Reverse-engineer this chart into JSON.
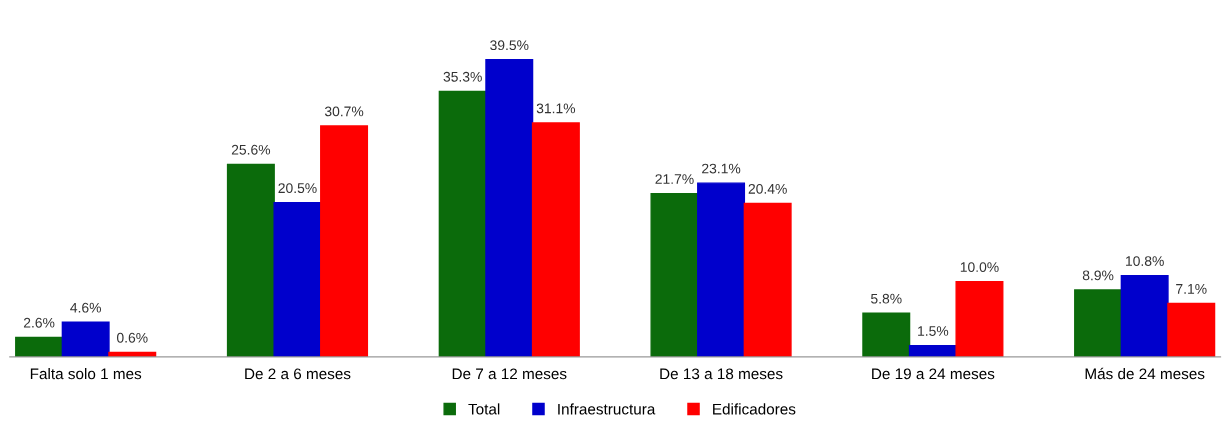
{
  "chart_data": {
    "type": "bar",
    "categories": [
      "Falta solo 1 mes",
      "De 2 a 6 meses",
      "De 7 a 12 meses",
      "De 13 a 18 meses",
      "De 19 a 24 meses",
      "Más de 24 meses"
    ],
    "series": [
      {
        "name": "Total",
        "color": "#0b6b0b",
        "values": [
          2.6,
          25.6,
          35.3,
          21.7,
          5.8,
          8.9
        ],
        "value_labels": [
          "2.6%",
          "25.6%",
          "35.3%",
          "21.7%",
          "5.8%",
          "8.9%"
        ]
      },
      {
        "name": "Infraestructura",
        "color": "#0000cc",
        "values": [
          4.6,
          20.5,
          39.5,
          23.1,
          1.5,
          10.8
        ],
        "value_labels": [
          "4.6%",
          "20.5%",
          "39.5%",
          "23.1%",
          "1.5%",
          "10.8%"
        ]
      },
      {
        "name": "Edificadores",
        "color": "#ff0000",
        "values": [
          0.6,
          30.7,
          31.1,
          20.4,
          10.0,
          7.1
        ],
        "value_labels": [
          "0.6%",
          "30.7%",
          "31.1%",
          "20.4%",
          "10.0%",
          "7.1%"
        ]
      }
    ],
    "grid": false,
    "legend": "bottom"
  }
}
